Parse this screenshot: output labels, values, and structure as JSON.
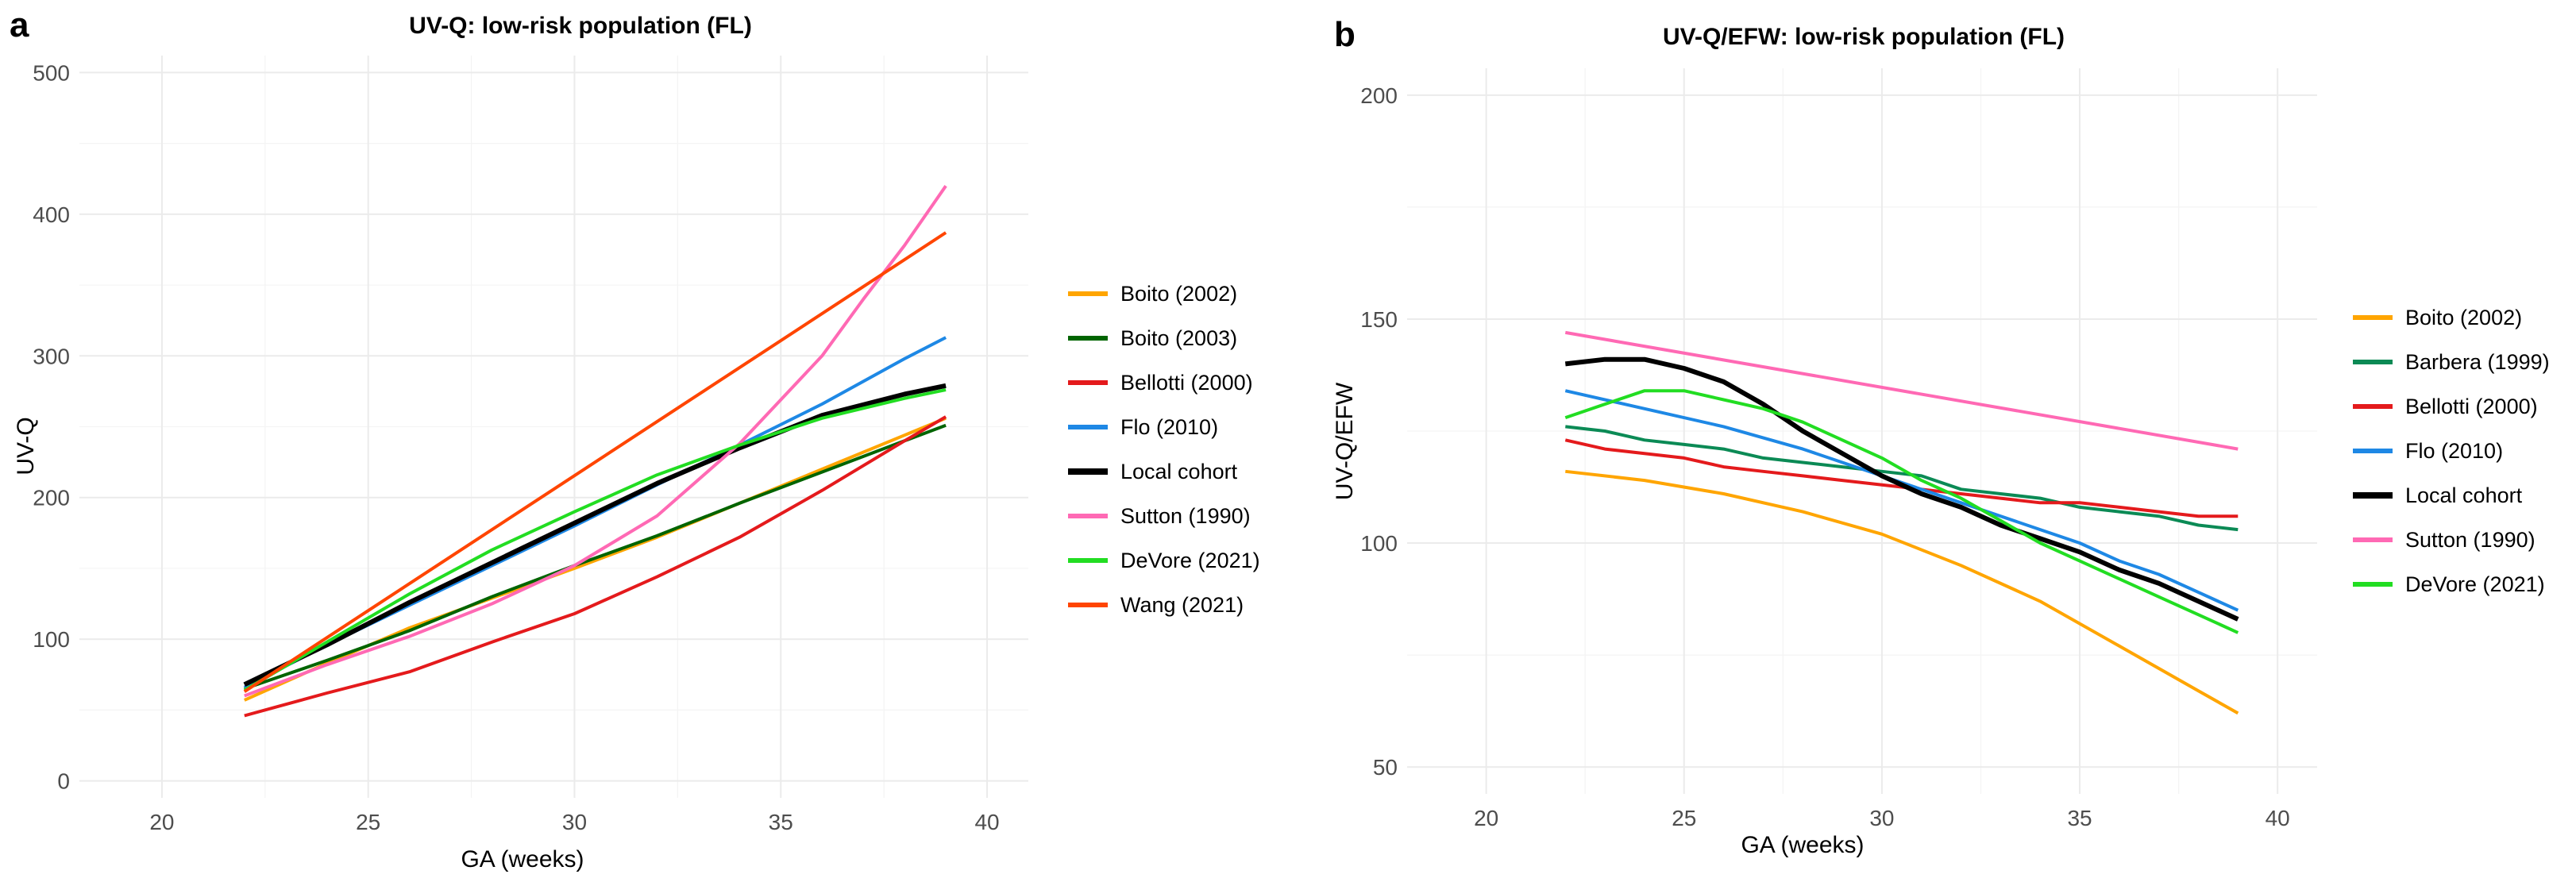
{
  "chart_data": [
    {
      "type": "line",
      "panel_label": "a",
      "title": "UV-Q: low-risk population (FL)",
      "xlabel": "GA (weeks)",
      "ylabel": "UV-Q",
      "xlim": [
        18,
        41
      ],
      "ylim": [
        -12,
        512
      ],
      "x_ticks": [
        20,
        25,
        30,
        35,
        40
      ],
      "y_ticks": [
        0,
        100,
        200,
        300,
        400,
        500
      ],
      "grid": true,
      "legend_position": "right",
      "series": [
        {
          "name": "Boito (2002)",
          "color": "#FFA500",
          "width": 4,
          "x": [
            22,
            24,
            26,
            28,
            30,
            32,
            34,
            36,
            38,
            39
          ],
          "y": [
            57,
            83,
            108,
            129,
            150,
            172,
            196,
            220,
            244,
            256
          ]
        },
        {
          "name": "Boito (2003)",
          "color": "#006400",
          "width": 4,
          "x": [
            22,
            24,
            26,
            28,
            30,
            32,
            34,
            36,
            38,
            39
          ],
          "y": [
            65,
            85,
            106,
            130,
            152,
            173,
            196,
            218,
            240,
            251
          ]
        },
        {
          "name": "Bellotti (2000)",
          "color": "#E41A1C",
          "width": 4,
          "x": [
            22,
            24,
            26,
            28,
            30,
            32,
            34,
            36,
            38,
            39
          ],
          "y": [
            46,
            62,
            77,
            98,
            118,
            144,
            172,
            205,
            240,
            257
          ]
        },
        {
          "name": "Flo (2010)",
          "color": "#1E88E5",
          "width": 4,
          "x": [
            22,
            24,
            26,
            28,
            30,
            32,
            34,
            36,
            38,
            39
          ],
          "y": [
            66,
            96,
            124,
            152,
            180,
            209,
            237,
            266,
            298,
            313
          ]
        },
        {
          "name": "Local cohort",
          "color": "#000000",
          "width": 6,
          "x": [
            22,
            24,
            26,
            28,
            30,
            32,
            34,
            36,
            38,
            39
          ],
          "y": [
            68,
            96,
            126,
            154,
            182,
            210,
            235,
            258,
            273,
            279
          ]
        },
        {
          "name": "Sutton (1990)",
          "color": "#FF69B4",
          "width": 4,
          "x": [
            22,
            24,
            26,
            28,
            30,
            32,
            34,
            36,
            37,
            38,
            39
          ],
          "y": [
            60,
            82,
            102,
            125,
            152,
            187,
            238,
            300,
            340,
            378,
            420
          ]
        },
        {
          "name": "DeVore (2021)",
          "color": "#22DD22",
          "width": 4,
          "x": [
            22,
            24,
            26,
            28,
            30,
            32,
            34,
            36,
            38,
            39
          ],
          "y": [
            64,
            98,
            132,
            163,
            190,
            216,
            237,
            256,
            270,
            276
          ]
        },
        {
          "name": "Wang (2021)",
          "color": "#FF4500",
          "width": 4,
          "x": [
            22,
            39
          ],
          "y": [
            63,
            387
          ]
        }
      ]
    },
    {
      "type": "line",
      "panel_label": "b",
      "title": "UV-Q/EFW: low-risk population (FL)",
      "xlabel": "GA (weeks)",
      "ylabel": "UV-Q/EFW",
      "xlim": [
        18,
        41
      ],
      "ylim": [
        44,
        206
      ],
      "x_ticks": [
        20,
        25,
        30,
        35,
        40
      ],
      "y_ticks": [
        50,
        100,
        150,
        200
      ],
      "grid": true,
      "legend_position": "right",
      "series": [
        {
          "name": "Boito (2002)",
          "color": "#FFA500",
          "width": 4,
          "x": [
            22,
            24,
            26,
            28,
            30,
            32,
            34,
            36,
            38,
            39
          ],
          "y": [
            116,
            114,
            111,
            107,
            102,
            95,
            87,
            77,
            67,
            62
          ]
        },
        {
          "name": "Barbera (1999)",
          "color": "#0B8A55",
          "width": 4,
          "x": [
            22,
            23,
            24,
            25,
            26,
            27,
            28,
            29,
            30,
            31,
            32,
            33,
            34,
            35,
            36,
            37,
            38,
            39
          ],
          "y": [
            126,
            125,
            123,
            122,
            121,
            119,
            118,
            117,
            116,
            115,
            112,
            111,
            110,
            108,
            107,
            106,
            104,
            103
          ]
        },
        {
          "name": "Bellotti (2000)",
          "color": "#E41A1C",
          "width": 4,
          "x": [
            22,
            23,
            24,
            25,
            26,
            27,
            28,
            29,
            30,
            31,
            32,
            33,
            34,
            35,
            36,
            37,
            38,
            39
          ],
          "y": [
            123,
            121,
            120,
            119,
            117,
            116,
            115,
            114,
            113,
            112,
            111,
            110,
            109,
            109,
            108,
            107,
            106,
            106
          ]
        },
        {
          "name": "Flo (2010)",
          "color": "#1E88E5",
          "width": 4,
          "x": [
            22,
            24,
            26,
            28,
            30,
            32,
            34,
            35,
            36,
            37,
            38,
            39
          ],
          "y": [
            134,
            130,
            126,
            121,
            115,
            109,
            103,
            100,
            96,
            93,
            89,
            85
          ]
        },
        {
          "name": "Local cohort",
          "color": "#000000",
          "width": 6,
          "x": [
            22,
            23,
            24,
            25,
            26,
            27,
            28,
            29,
            30,
            31,
            32,
            33,
            34,
            35,
            36,
            37,
            38,
            39
          ],
          "y": [
            140,
            141,
            141,
            139,
            136,
            131,
            125,
            120,
            115,
            111,
            108,
            104,
            101,
            98,
            94,
            91,
            87,
            83
          ]
        },
        {
          "name": "Sutton (1990)",
          "color": "#FF69B4",
          "width": 4,
          "x": [
            22,
            39
          ],
          "y": [
            147,
            121
          ]
        },
        {
          "name": "DeVore (2021)",
          "color": "#22DD22",
          "width": 4,
          "x": [
            22,
            23,
            24,
            25,
            26,
            27,
            28,
            29,
            30,
            31,
            32,
            33,
            34,
            35,
            36,
            37,
            38,
            39
          ],
          "y": [
            128,
            131,
            134,
            134,
            132,
            130,
            127,
            123,
            119,
            114,
            110,
            105,
            100,
            96,
            92,
            88,
            84,
            80
          ]
        }
      ]
    }
  ]
}
